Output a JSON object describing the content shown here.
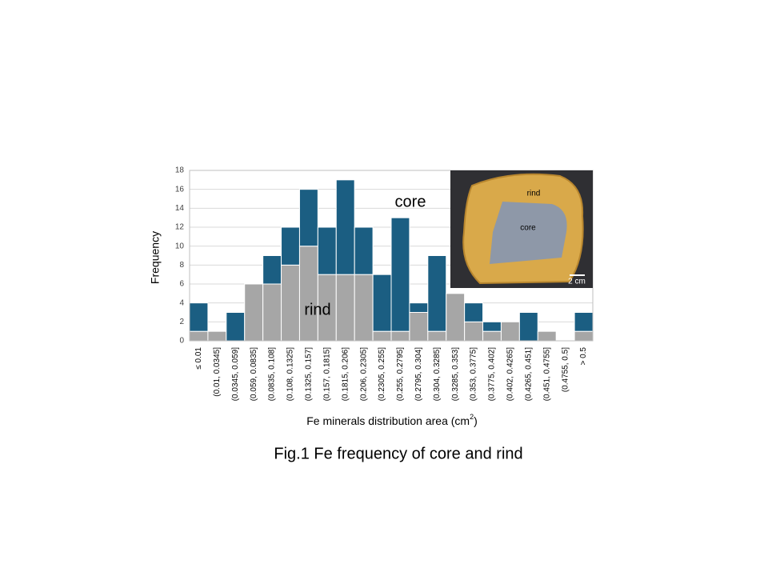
{
  "chart_data": {
    "type": "stacked_bar",
    "caption": "Fig.1 Fe frequency of core and rind",
    "y_label": "Frequency",
    "x_label": {
      "text": "Fe minerals distribution area (cm",
      "superscript": "2",
      "suffix": ")"
    },
    "categories": [
      "≤ 0.01",
      "(0.01, 0.0345]",
      "(0.0345, 0.059]",
      "(0.059, 0.0835]",
      "(0.0835, 0.108]",
      "(0.108, 0.1325]",
      "(0.1325, 0.157]",
      "(0.157, 0.1815]",
      "(0.1815, 0.206]",
      "(0.206, 0.2305]",
      "(0.2305, 0.255]",
      "(0.255, 0.2795]",
      "(0.2795, 0.304]",
      "(0.304, 0.3285]",
      "(0.3285, 0.353]",
      "(0.353, 0.3775]",
      "(0.3775, 0.402]",
      "(0.402, 0.4265]",
      "(0.4265, 0.451]",
      "(0.451, 0.4755]",
      "(0.4755, 0.5]",
      "> 0.5"
    ],
    "series": [
      {
        "name": "rind",
        "color": "#a6a6a6",
        "values": [
          1,
          1,
          0,
          6,
          6,
          8,
          10,
          7,
          7,
          7,
          1,
          1,
          3,
          1,
          5,
          2,
          1,
          2,
          0,
          1,
          0,
          1
        ]
      },
      {
        "name": "core",
        "color": "#1b5e82",
        "values": [
          3,
          0,
          3,
          0,
          3,
          4,
          6,
          5,
          10,
          5,
          6,
          12,
          1,
          8,
          0,
          2,
          1,
          0,
          3,
          0,
          0,
          2
        ]
      }
    ],
    "ylim": [
      0,
      18
    ],
    "yticks": [
      0,
      2,
      4,
      6,
      8,
      10,
      12,
      14,
      16,
      18
    ],
    "grid": true,
    "inset": {
      "labels": [
        "rind",
        "core",
        "2 cm"
      ]
    }
  }
}
